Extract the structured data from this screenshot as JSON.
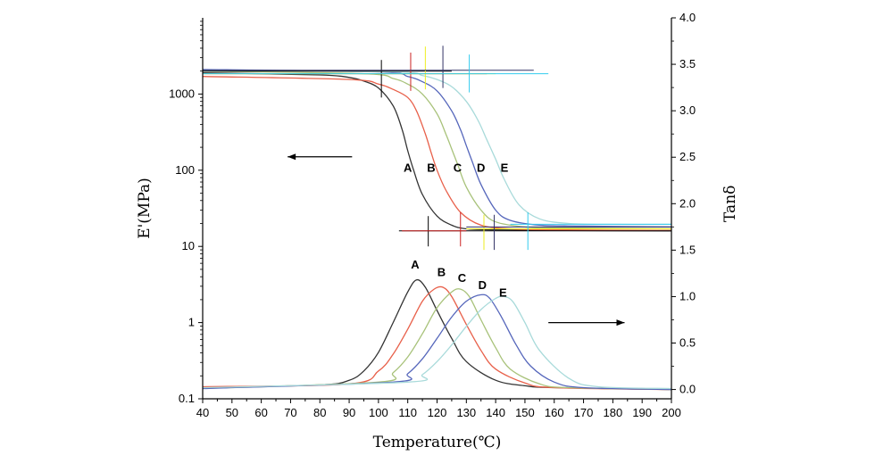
{
  "chart_data": {
    "type": "line",
    "title": "",
    "xlabel": "Temperature(℃)",
    "ylabel_left": "E'(MPa)",
    "ylabel_right": "Tanδ",
    "xlim": [
      40,
      200
    ],
    "ylim_left": [
      0.1,
      10000
    ],
    "ylim_left_scale": "log",
    "ylim_right": [
      -0.1,
      4.0
    ],
    "grid": false,
    "x_ticks": [
      40,
      50,
      60,
      70,
      80,
      90,
      100,
      110,
      120,
      130,
      140,
      150,
      160,
      170,
      180,
      190,
      200
    ],
    "y_left_ticks": [
      {
        "value": 0.1,
        "label": "0.1"
      },
      {
        "value": 1,
        "label": "1"
      },
      {
        "value": 10,
        "label": "10"
      },
      {
        "value": 100,
        "label": "100"
      },
      {
        "value": 1000,
        "label": "1000"
      }
    ],
    "y_right_ticks": [
      0.0,
      0.5,
      1.0,
      1.5,
      2.0,
      2.5,
      3.0,
      3.5,
      4.0
    ],
    "y_right_tick_labels": [
      "0.0",
      "0.5",
      "1.0",
      "1.5",
      "2.0",
      "2.5",
      "3.0",
      "3.5",
      "4.0"
    ],
    "arrows": [
      {
        "direction": "left",
        "from_x": 91,
        "to_x": 69,
        "y_axis": "left",
        "y": 150
      },
      {
        "direction": "right",
        "from_x": 158,
        "to_x": 184,
        "y_axis": "right",
        "y": 0.72
      }
    ],
    "series": [
      {
        "name": "A",
        "color": "#333333",
        "modulus": {
          "x": [
            40,
            80,
            90,
            95,
            100,
            105,
            108,
            110,
            112,
            115,
            120,
            125,
            130,
            140,
            160,
            200
          ],
          "y": [
            1900,
            1780,
            1650,
            1480,
            1200,
            700,
            350,
            180,
            100,
            48,
            25,
            19,
            17,
            16.5,
            16.2,
            16.0
          ]
        },
        "tan_delta": {
          "x": [
            40,
            80,
            90,
            95,
            100,
            105,
            110,
            113,
            116,
            120,
            125,
            130,
            140,
            150,
            160,
            200
          ],
          "y": [
            0.02,
            0.05,
            0.1,
            0.2,
            0.4,
            0.72,
            1.05,
            1.18,
            1.1,
            0.85,
            0.55,
            0.3,
            0.1,
            0.04,
            0.02,
            0.0
          ]
        },
        "curve_label": {
          "text": "A",
          "modulus_x": 110,
          "modulus_y": 95,
          "tan_x": 112.5,
          "tan_y": 1.3
        }
      },
      {
        "name": "B",
        "color": "#e8604a",
        "modulus": {
          "x": [
            40,
            90,
            100,
            105,
            110,
            113,
            116,
            118,
            120,
            123,
            128,
            135,
            145,
            160,
            200
          ],
          "y": [
            1700,
            1550,
            1350,
            1150,
            900,
            600,
            300,
            170,
            100,
            55,
            28,
            19,
            17,
            16.5,
            16.2
          ]
        },
        "tan_delta": {
          "x": [
            40,
            90,
            100,
            105,
            110,
            115,
            119,
            122,
            125,
            130,
            135,
            140,
            150,
            160,
            200
          ],
          "y": [
            0.03,
            0.06,
            0.2,
            0.38,
            0.65,
            0.95,
            1.08,
            1.1,
            1.0,
            0.7,
            0.42,
            0.22,
            0.07,
            0.02,
            0.0
          ]
        },
        "curve_label": {
          "text": "B",
          "modulus_x": 118,
          "modulus_y": 95,
          "tan_x": 121.5,
          "tan_y": 1.22
        }
      },
      {
        "name": "C",
        "color": "#a8c27a",
        "modulus": {
          "x": [
            40,
            95,
            105,
            110,
            115,
            120,
            123,
            125,
            127,
            130,
            135,
            140,
            150,
            160,
            200
          ],
          "y": [
            2000,
            1850,
            1600,
            1350,
            1000,
            550,
            300,
            190,
            120,
            60,
            30,
            21,
            18,
            17.5,
            17
          ]
        },
        "tan_delta": {
          "x": [
            40,
            100,
            105,
            110,
            115,
            120,
            125,
            128,
            131,
            135,
            140,
            145,
            155,
            165,
            200
          ],
          "y": [
            0.01,
            0.08,
            0.18,
            0.35,
            0.6,
            0.88,
            1.05,
            1.08,
            1.0,
            0.75,
            0.45,
            0.22,
            0.06,
            0.02,
            0.0
          ]
        },
        "curve_label": {
          "text": "C",
          "modulus_x": 127,
          "modulus_y": 95,
          "tan_x": 128.5,
          "tan_y": 1.16
        }
      },
      {
        "name": "D",
        "color": "#5566bb",
        "modulus": {
          "x": [
            40,
            100,
            110,
            115,
            120,
            125,
            128,
            130,
            132,
            135,
            140,
            145,
            155,
            170,
            200
          ],
          "y": [
            2100,
            1950,
            1700,
            1450,
            1100,
            600,
            340,
            210,
            130,
            65,
            30,
            22,
            19,
            18.5,
            18
          ]
        },
        "tan_delta": {
          "x": [
            40,
            105,
            110,
            115,
            120,
            125,
            130,
            135,
            138,
            142,
            147,
            152,
            160,
            170,
            200
          ],
          "y": [
            0.01,
            0.08,
            0.17,
            0.33,
            0.55,
            0.78,
            0.95,
            1.02,
            0.98,
            0.78,
            0.48,
            0.25,
            0.08,
            0.02,
            0.0
          ]
        },
        "curve_label": {
          "text": "D",
          "modulus_x": 135,
          "modulus_y": 95,
          "tan_x": 135.5,
          "tan_y": 1.08
        }
      },
      {
        "name": "E",
        "color": "#a8dada",
        "modulus": {
          "x": [
            40,
            105,
            115,
            120,
            125,
            130,
            134,
            137,
            140,
            143,
            148,
            155,
            165,
            180,
            200
          ],
          "y": [
            2050,
            1950,
            1750,
            1550,
            1250,
            800,
            450,
            250,
            140,
            75,
            35,
            23,
            20,
            19.5,
            19.5
          ]
        },
        "tan_delta": {
          "x": [
            40,
            110,
            115,
            120,
            125,
            130,
            135,
            140,
            143,
            146,
            150,
            155,
            165,
            175,
            200
          ],
          "y": [
            0.02,
            0.08,
            0.16,
            0.3,
            0.48,
            0.68,
            0.86,
            0.98,
            1.0,
            0.94,
            0.72,
            0.42,
            0.12,
            0.03,
            0.01
          ]
        },
        "curve_label": {
          "text": "E",
          "modulus_x": 143,
          "modulus_y": 95,
          "tan_x": 142.5,
          "tan_y": 1.0
        }
      }
    ],
    "tangent_lines": [
      {
        "series": "A",
        "color": "#000000",
        "h_upper": {
          "x": [
            40,
            125
          ],
          "y": 2000
        },
        "v_upper": {
          "x": 101,
          "y": [
            900,
            2800
          ]
        },
        "h_lower": {
          "x": [
            107,
            200
          ],
          "y": 16
        },
        "v_lower": {
          "x": 117,
          "y": [
            10,
            25
          ]
        }
      },
      {
        "series": "B",
        "color": "#cc2222",
        "h_upper": {
          "x": [
            40,
            137
          ],
          "y": 1850
        },
        "v_upper": {
          "x": 111,
          "y": [
            1100,
            3500
          ]
        },
        "h_lower": {
          "x": [
            108,
            130
          ],
          "y": 16
        },
        "v_lower": {
          "x": 128,
          "y": [
            10,
            28
          ]
        }
      },
      {
        "series": "C",
        "color": "#eeee22",
        "h_upper": {
          "x": [
            40,
            140
          ],
          "y": 1850
        },
        "v_upper": {
          "x": 116,
          "y": [
            1150,
            4200
          ]
        },
        "h_lower": {
          "x": [
            130,
            200
          ],
          "y": 17
        },
        "v_lower": {
          "x": 136,
          "y": [
            9,
            26
          ]
        }
      },
      {
        "series": "D",
        "color": "#333366",
        "h_upper": {
          "x": [
            40,
            153
          ],
          "y": 2050
        },
        "v_upper": {
          "x": 122,
          "y": [
            1200,
            4300
          ]
        },
        "h_lower": {
          "x": [
            130,
            200
          ],
          "y": 18
        },
        "v_lower": {
          "x": 139.5,
          "y": [
            9,
            26
          ]
        }
      },
      {
        "series": "E",
        "color": "#33ccee",
        "h_upper": {
          "x": [
            40,
            158
          ],
          "y": 1850
        },
        "v_upper": {
          "x": 131,
          "y": [
            1050,
            3300
          ]
        },
        "h_lower": {
          "x": [
            145,
            200
          ],
          "y": 19.5
        },
        "v_lower": {
          "x": 151,
          "y": [
            9,
            28
          ]
        }
      }
    ]
  }
}
